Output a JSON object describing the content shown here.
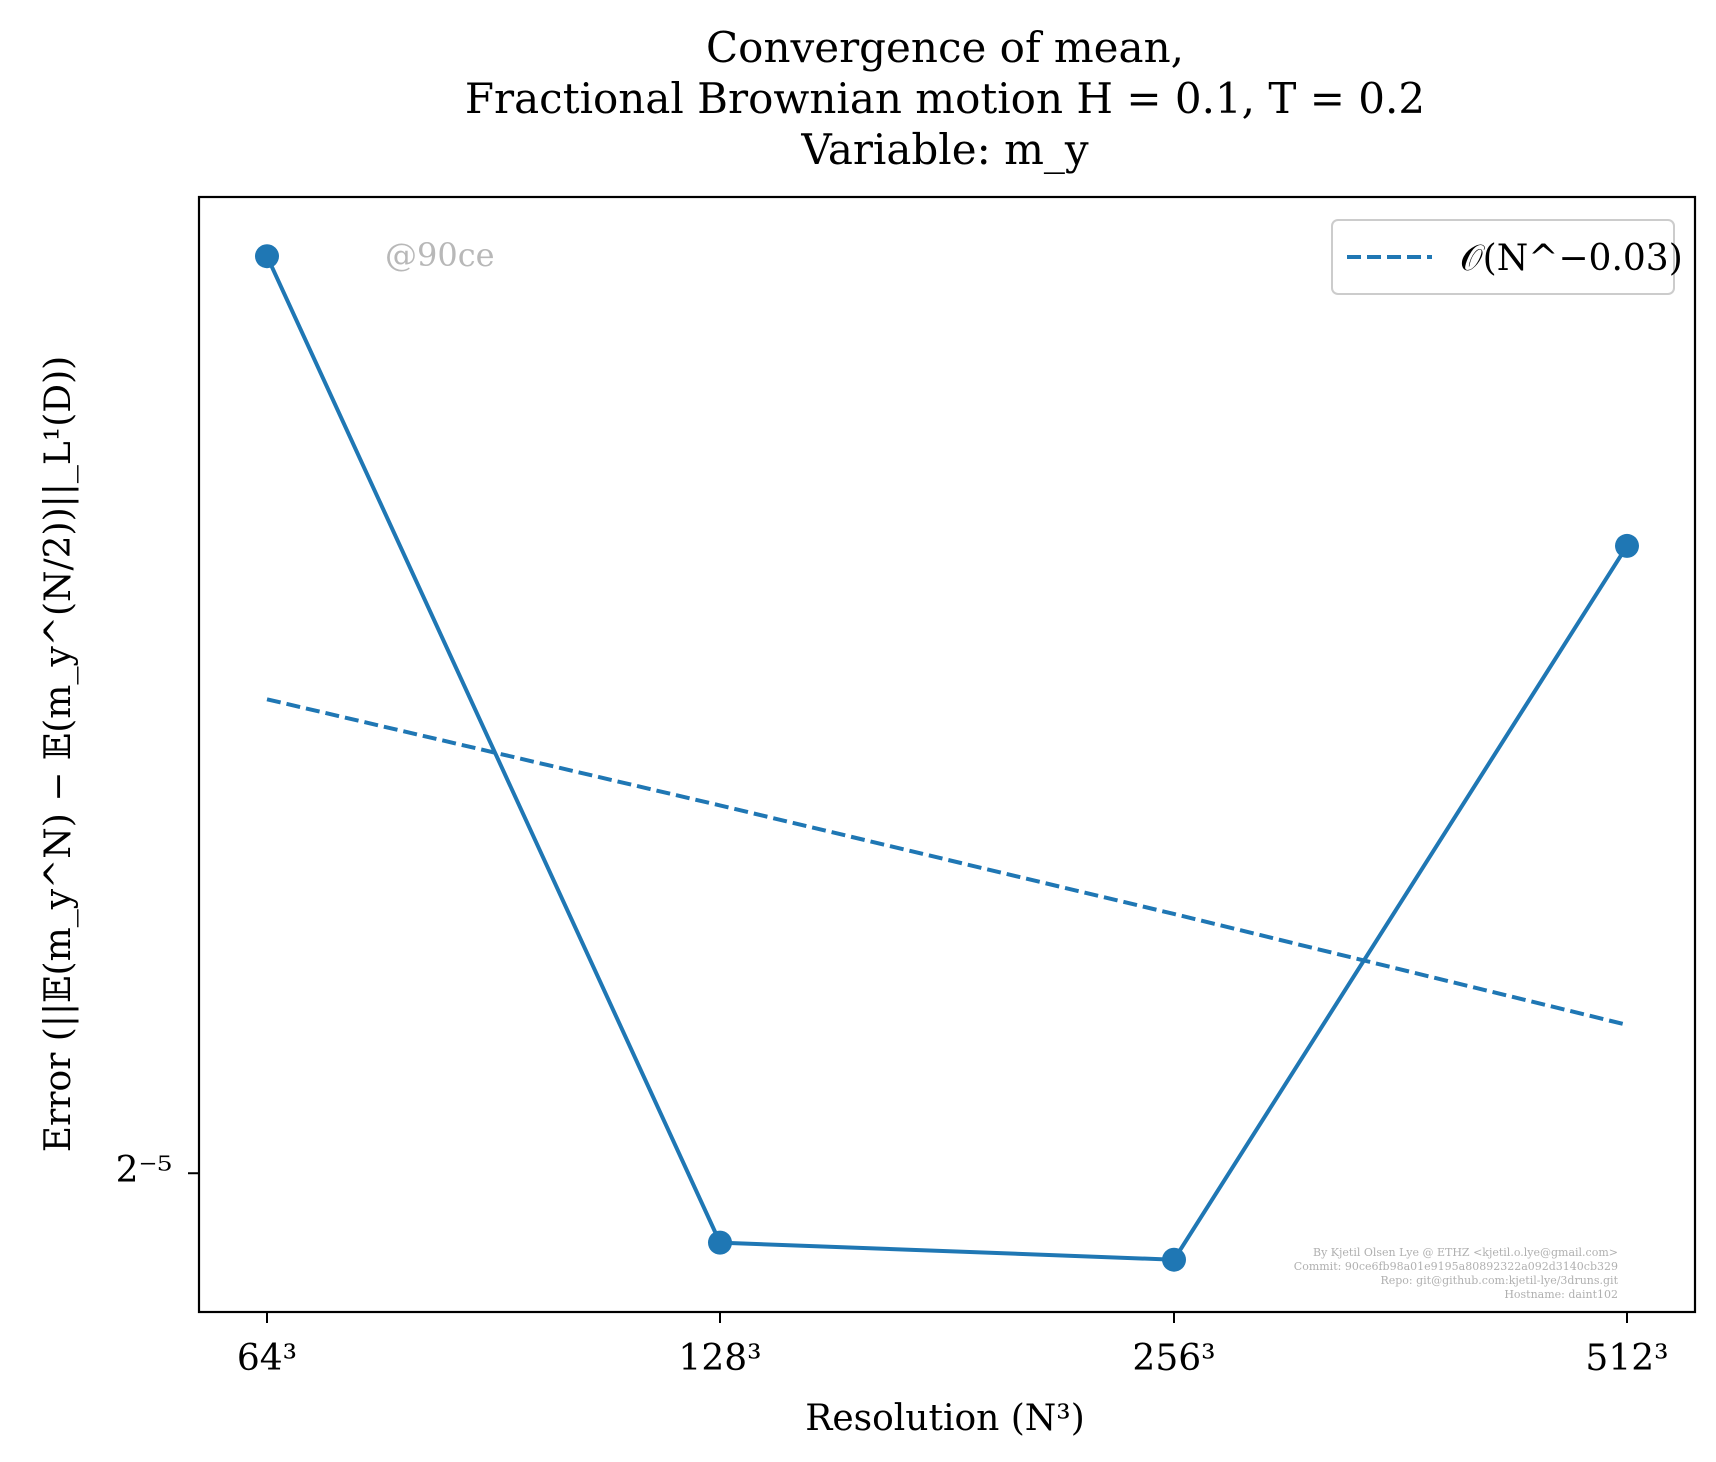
{
  "chart_data": {
    "type": "line",
    "title_lines": [
      "Convergence of mean,",
      "Fractional Brownian motion H = 0.1, T = 0.2",
      "Variable: m_y"
    ],
    "xlabel": "Resolution (N³)",
    "ylabel": "Error (||𝔼(m_y^N) − 𝔼(m_y^(N/2))||_L¹(D))",
    "x_scale": "log2",
    "y_scale": "log2",
    "categories": [
      "64³",
      "128³",
      "256³",
      "512³"
    ],
    "x": [
      64,
      128,
      256,
      512
    ],
    "ylim": [
      0.0288,
      0.0555
    ],
    "yticks": [
      {
        "value": 0.03125,
        "label": "2⁻⁵"
      }
    ],
    "series": [
      {
        "values": [
          0.0536,
          0.03,
          0.0297,
          0.0452
        ],
        "style": "solid",
        "markers": true,
        "color": "#1f77b4"
      },
      {
        "name": "𝒪(N^−0.03)",
        "values": [
          0.0413,
          0.0388,
          0.0364,
          0.0341
        ],
        "style": "dashed",
        "markers": false,
        "color": "#1f77b4"
      }
    ],
    "grid": false,
    "legend_position": "top-right",
    "watermark": "@90ce",
    "credits": [
      "By Kjetil Olsen Lye @ ETHZ <kjetil.o.lye@gmail.com>",
      "Commit: 90ce6fb98a01e9195a80892322a092d3140cb329",
      "Repo: git@github.com:kjetil-lye/3druns.git",
      "Hostname: daint102"
    ]
  }
}
